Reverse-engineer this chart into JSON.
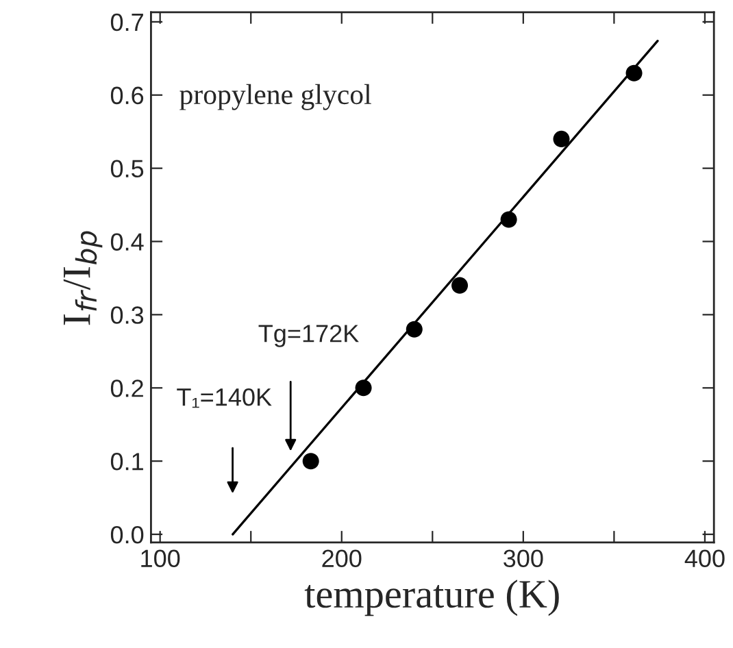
{
  "chart_data": {
    "type": "scatter",
    "xlabel": "temperature (K)",
    "ylabel": "I$_{fr}$/I$_{bp}$",
    "xlim": [
      95,
      405
    ],
    "ylim": [
      -0.011,
      0.713
    ],
    "xticks": [
      100,
      {
        "value": 150,
        "label": null
      },
      200,
      {
        "value": 250,
        "label": null
      },
      300,
      {
        "value": 350,
        "label": null
      },
      400
    ],
    "yticks": [
      {
        "value": 0,
        "label": "0.0"
      },
      0.1,
      0.2,
      0.3,
      0.4,
      0.5,
      0.6,
      0.7
    ],
    "marker": "circle",
    "grid": false,
    "legend": false,
    "series": [
      {
        "color": "#000000",
        "x": [
          183,
          212,
          240,
          265,
          292,
          321,
          361
        ],
        "values": [
          0.1,
          0.2,
          0.28,
          0.34,
          0.43,
          0.54,
          0.63
        ]
      },
      {
        "type": "line",
        "color": "#000000",
        "x": [
          140,
          374
        ],
        "values": [
          0,
          0.674
        ],
        "marker": "none",
        "line_style": "solid"
      }
    ],
    "annotations": [
      "propylene glycol",
      "T₁=140K",
      "Tg=172K"
    ]
  }
}
